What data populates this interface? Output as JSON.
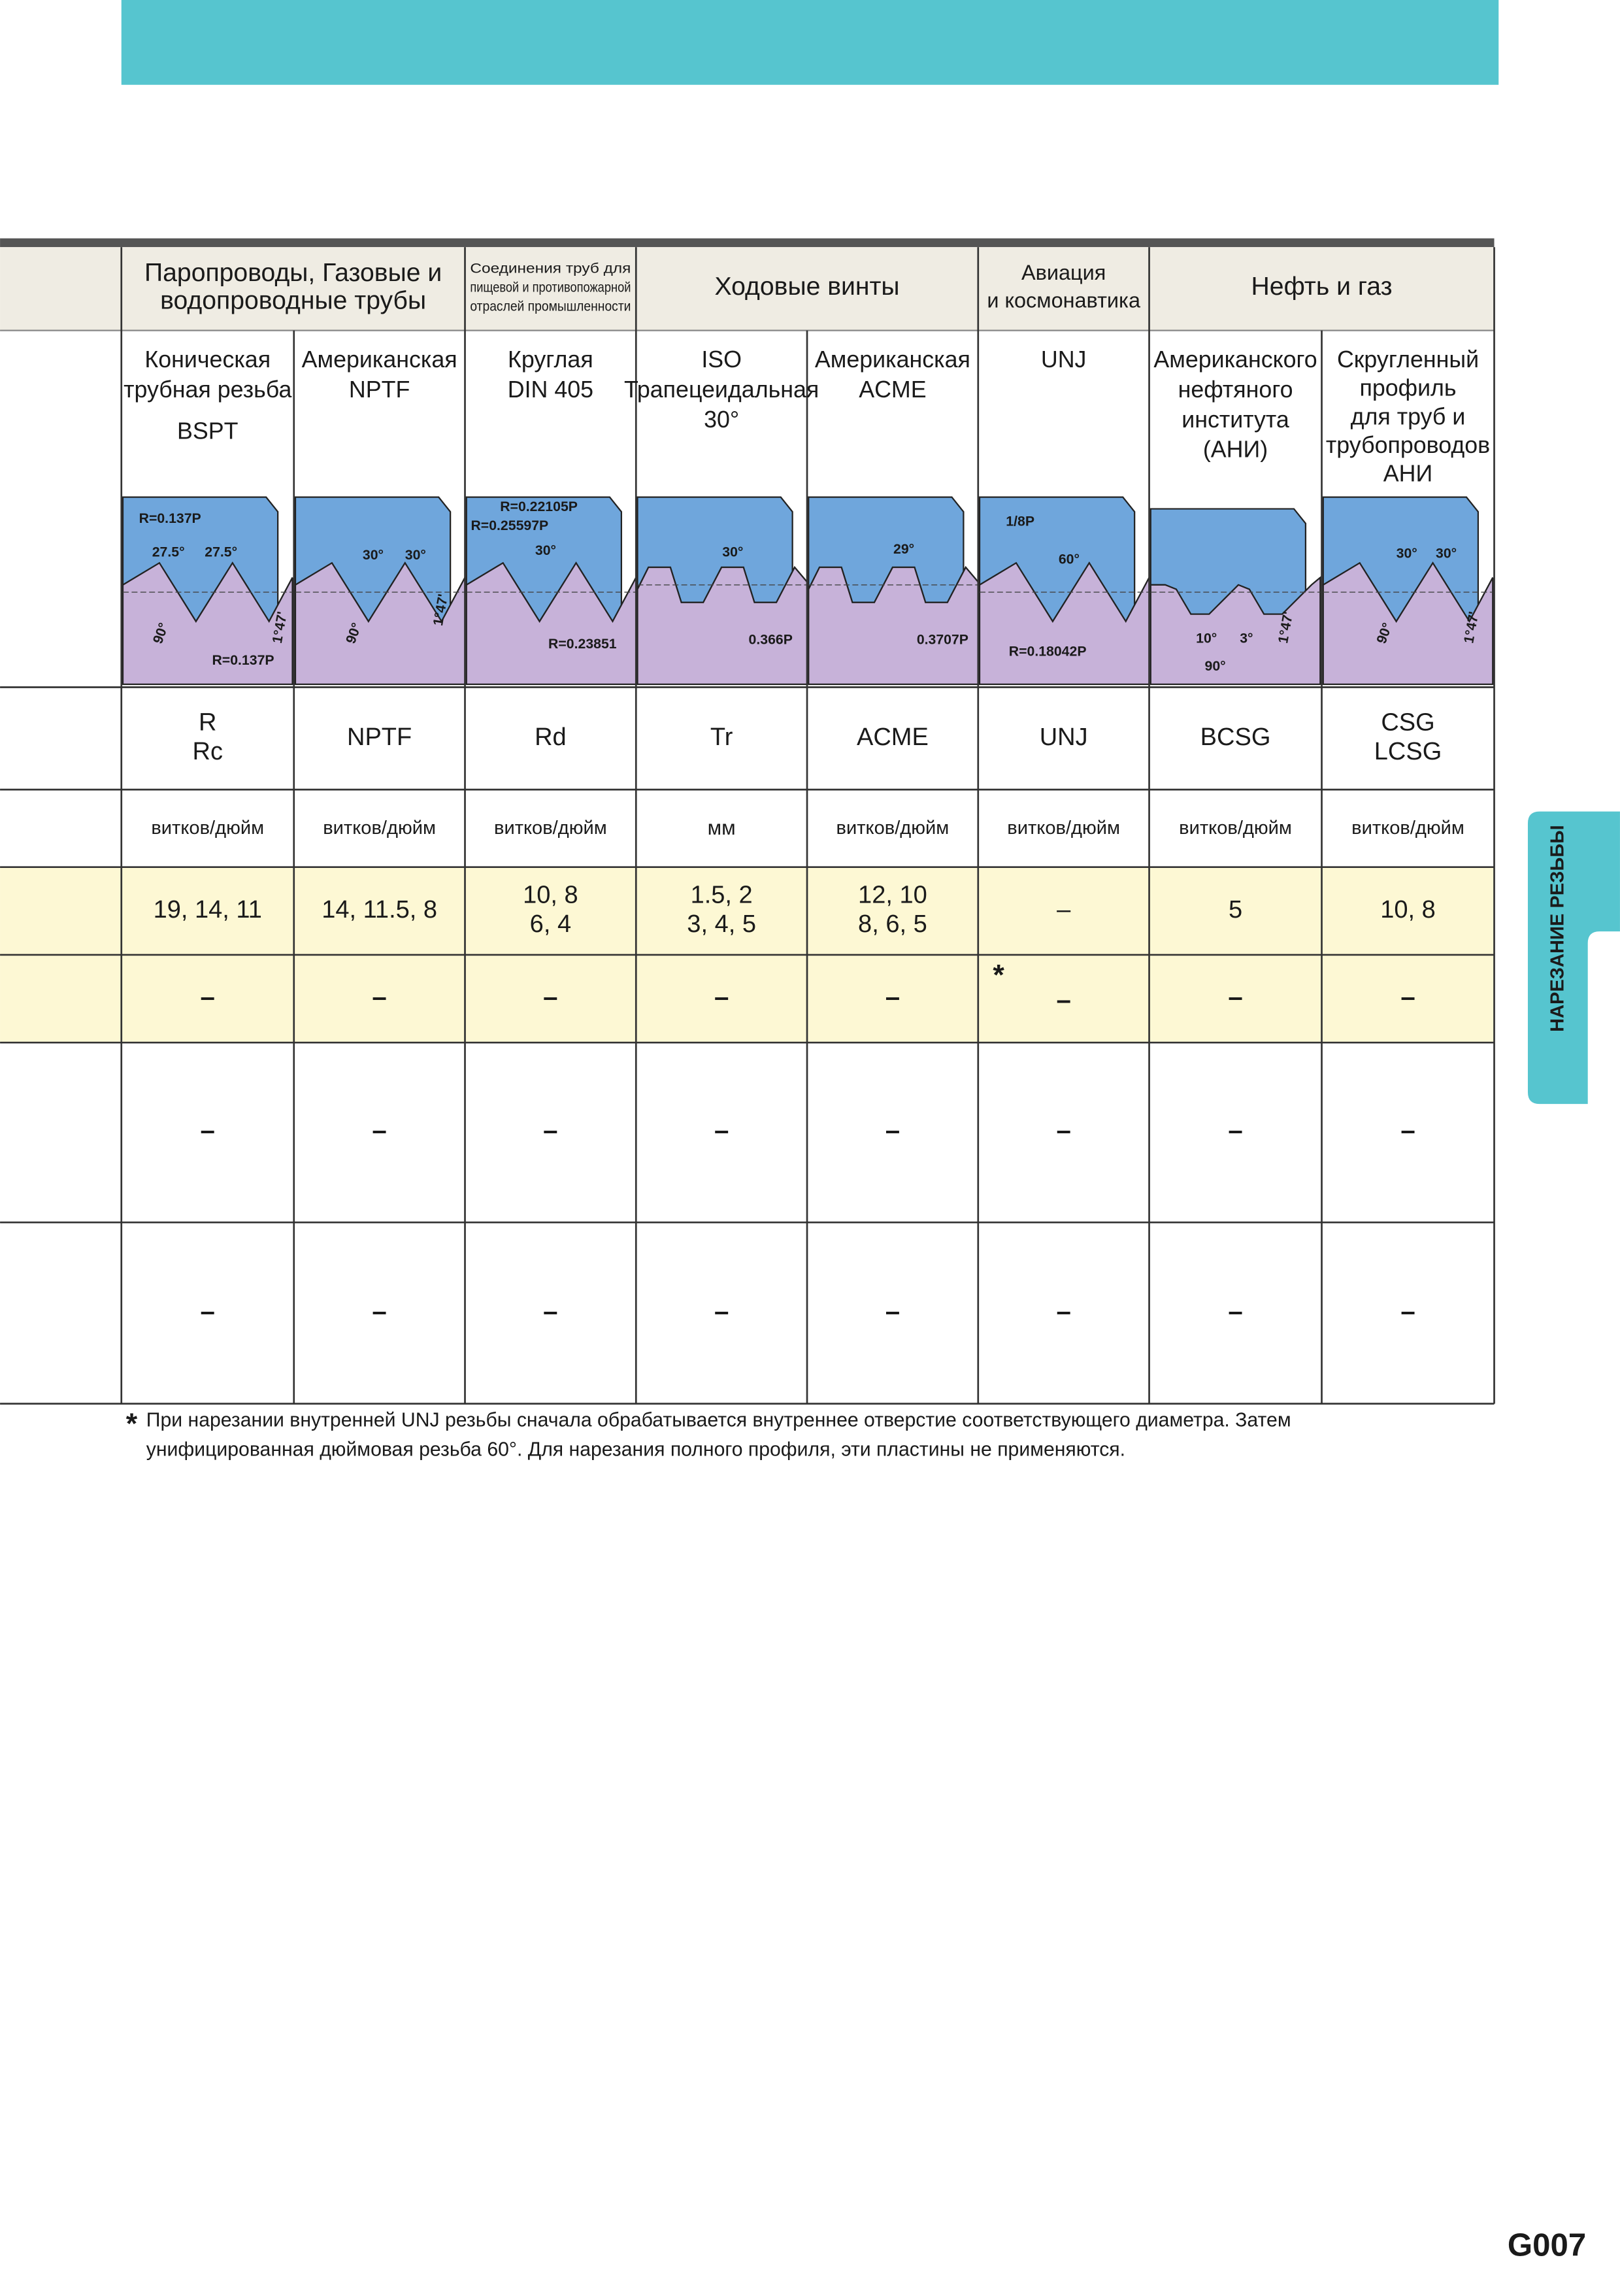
{
  "header": {
    "groups": [
      {
        "lines": [
          "Паропроводы, Газовые и",
          "водопроводные трубы"
        ]
      },
      {
        "lines": [
          "Соединения труб для",
          "пищевой и противопожарной",
          "отраслей промышленности"
        ]
      },
      {
        "lines": [
          "Ходовые винты"
        ]
      },
      {
        "lines": [
          "Авиация",
          "и космонавтика"
        ]
      },
      {
        "lines": [
          "Нефть и газ"
        ]
      }
    ]
  },
  "table": {
    "columns": [
      {
        "name": [
          "Коническая",
          "трубная резьба",
          "BSPT"
        ],
        "diagram_labels": [
          "R=0.137P",
          "27.5°",
          "27.5°",
          "90°",
          "R=0.137P",
          "1°47'"
        ],
        "code": [
          "R",
          "Rc"
        ],
        "unit": "витков/дюйм",
        "pitches": [
          "19, 14, 11"
        ]
      },
      {
        "name": [
          "Американская",
          "NPTF"
        ],
        "diagram_labels": [
          "30°",
          "30°",
          "90°",
          "1°47'"
        ],
        "code": [
          "NPTF"
        ],
        "unit": "витков/дюйм",
        "pitches": [
          "14, 11.5, 8"
        ]
      },
      {
        "name": [
          "Круглая",
          "DIN 405"
        ],
        "diagram_labels": [
          "R=0.22105P",
          "R=0.25597P",
          "30°",
          "R=0.23851"
        ],
        "code": [
          "Rd"
        ],
        "unit": "витков/дюйм",
        "pitches": [
          "10, 8",
          "6, 4"
        ]
      },
      {
        "name": [
          "ISO",
          "Трапецеидальная",
          "30°"
        ],
        "diagram_labels": [
          "30°",
          "0.366P"
        ],
        "code": [
          "Tr"
        ],
        "unit": "мм",
        "pitches": [
          "1.5, 2",
          "3, 4, 5"
        ]
      },
      {
        "name": [
          "Американская",
          "ACME"
        ],
        "diagram_labels": [
          "29°",
          "0.3707P"
        ],
        "code": [
          "ACME"
        ],
        "unit": "витков/дюйм",
        "pitches": [
          "12, 10",
          "8, 6, 5"
        ]
      },
      {
        "name": [
          "UNJ"
        ],
        "diagram_labels": [
          "1/8P",
          "60°",
          "R=0.18042P"
        ],
        "code": [
          "UNJ"
        ],
        "unit": "витков/дюйм",
        "pitches": [
          "–"
        ],
        "row_marker": "*"
      },
      {
        "name": [
          "Американского",
          "нефтяного",
          "института",
          "(АНИ)"
        ],
        "diagram_labels": [
          "10°",
          "3°",
          "90°",
          "1°47'"
        ],
        "code": [
          "BCSG"
        ],
        "unit": "витков/дюйм",
        "pitches": [
          "5"
        ]
      },
      {
        "name": [
          "Скругленный",
          "профиль",
          "для труб и",
          "трубопроводов",
          "АНИ"
        ],
        "diagram_labels": [
          "30°",
          "30°",
          "90°",
          "1°47'"
        ],
        "code": [
          "CSG",
          "LCSG"
        ],
        "unit": "витков/дюйм",
        "pitches": [
          "10, 8"
        ]
      }
    ],
    "rows": [
      [
        "–",
        "–",
        "–",
        "–",
        "–",
        "–",
        "–",
        "–"
      ],
      [
        "–",
        "–",
        "–",
        "–",
        "–",
        "–",
        "–",
        "–"
      ],
      [
        "–",
        "–",
        "–",
        "–",
        "–",
        "–",
        "–",
        "–"
      ]
    ]
  },
  "footnote": {
    "marker": "*",
    "lines": [
      "При нарезании внутренней UNJ резьбы сначала обрабатывается внутреннее отверстие соответствующего диаметра. Затем",
      "унифицированная дюймовая резьба 60°. Для нарезания полного профиля, эти пластины не применяются."
    ]
  },
  "side_tab": "НАРЕЗАНИЕ РЕЗЬБЫ",
  "page_number": "G007"
}
